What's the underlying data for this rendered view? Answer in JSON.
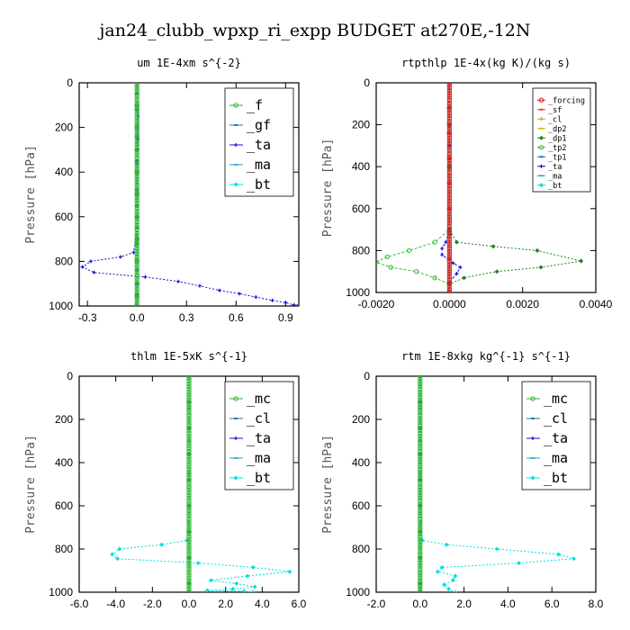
{
  "figure": {
    "title": "jan24_clubb_wpxp_ri_expp  BUDGET at270E,-12N"
  },
  "chart_data": [
    {
      "type": "line",
      "title": "um   1E-4xm s^{-2}",
      "ylabel": "Pressure [hPa]",
      "xlim": [
        -0.35,
        0.98
      ],
      "ylim": [
        1000,
        0
      ],
      "xticks": [
        -0.3,
        0.0,
        0.3,
        0.6,
        0.9
      ],
      "xtick_labels": [
        "-0.3",
        "0.0",
        "0.3",
        "0.6",
        "0.9"
      ],
      "yticks": [
        0,
        200,
        400,
        600,
        800,
        1000
      ],
      "ytick_labels": [
        "0",
        "200",
        "400",
        "600",
        "800",
        "1000"
      ],
      "legend": "top-right",
      "legend_size": "large",
      "series": [
        {
          "name": "_f",
          "color": "#2db82d",
          "x": [
            0,
            0,
            0,
            0,
            0,
            0,
            0,
            0,
            0,
            0,
            0,
            0
          ],
          "y": [
            0,
            100,
            200,
            300,
            400,
            500,
            600,
            700,
            800,
            900,
            950,
            1000
          ]
        },
        {
          "name": "_gf",
          "color": "#1f77b4",
          "x": [
            0,
            0,
            0,
            0,
            0,
            0,
            0,
            0,
            0,
            0,
            0,
            0
          ],
          "y": [
            0,
            100,
            200,
            300,
            400,
            500,
            600,
            700,
            800,
            900,
            950,
            1000
          ]
        },
        {
          "name": "_ta",
          "color": "#1010d0",
          "x": [
            0,
            0,
            0.005,
            0.005,
            0,
            0,
            0,
            0,
            -0.02,
            -0.1,
            -0.28,
            -0.33,
            -0.26,
            0.05,
            0.25,
            0.38,
            0.5,
            0.62,
            0.72,
            0.82,
            0.9,
            0.95,
            0.97
          ],
          "y": [
            0,
            50,
            150,
            250,
            350,
            450,
            550,
            650,
            760,
            780,
            800,
            825,
            850,
            870,
            890,
            910,
            930,
            945,
            960,
            975,
            985,
            995,
            1000
          ]
        },
        {
          "name": "_ma",
          "color": "#20a0d0",
          "x": [
            0,
            0,
            0,
            0,
            0,
            0,
            0,
            0,
            0,
            0
          ],
          "y": [
            0,
            120,
            240,
            360,
            480,
            600,
            720,
            840,
            960,
            1000
          ]
        },
        {
          "name": "_bt",
          "color": "#00e0e0",
          "x": [
            0,
            0,
            0,
            0,
            0,
            0,
            0,
            0,
            0,
            0
          ],
          "y": [
            0,
            120,
            240,
            360,
            480,
            600,
            720,
            840,
            960,
            1000
          ]
        }
      ]
    },
    {
      "type": "line",
      "title": "rtpthlp   1E-4x(kg K)/(kg s)",
      "ylabel": "Pressure [hPa]",
      "xlim": [
        -0.002,
        0.004
      ],
      "ylim": [
        1000,
        0
      ],
      "xticks": [
        -0.002,
        0.0,
        0.002,
        0.004
      ],
      "xtick_labels": [
        "-0.0020",
        "0.0000",
        "0.0020",
        "0.0040"
      ],
      "yticks": [
        0,
        200,
        400,
        600,
        800,
        1000
      ],
      "ytick_labels": [
        "0",
        "200",
        "400",
        "600",
        "800",
        "1000"
      ],
      "legend": "top-right",
      "legend_size": "small",
      "series": [
        {
          "name": "_forcing",
          "color": "#d02020",
          "x": [
            0,
            0,
            0,
            0,
            0,
            0,
            0,
            0,
            0,
            0
          ],
          "y": [
            0,
            120,
            240,
            360,
            480,
            600,
            720,
            840,
            960,
            1000
          ]
        },
        {
          "name": "_sf",
          "color": "#e04010",
          "x": [
            0,
            0,
            0,
            0,
            0,
            0,
            0,
            0,
            0,
            0
          ],
          "y": [
            0,
            120,
            240,
            360,
            480,
            600,
            720,
            840,
            960,
            1000
          ]
        },
        {
          "name": "_cl",
          "color": "#e0a000",
          "x": [
            0,
            0,
            0,
            0,
            0,
            0,
            0,
            0,
            0,
            0
          ],
          "y": [
            0,
            120,
            240,
            360,
            480,
            600,
            720,
            840,
            960,
            1000
          ]
        },
        {
          "name": "_dp2",
          "color": "#c0c000",
          "x": [
            0,
            0,
            0,
            0,
            0,
            0,
            0,
            0,
            0,
            0
          ],
          "y": [
            0,
            120,
            240,
            360,
            480,
            600,
            720,
            840,
            960,
            1000
          ]
        },
        {
          "name": "_dp1",
          "color": "#208020",
          "x": [
            0,
            0,
            0,
            0,
            0.0002,
            0.0012,
            0.0024,
            0.0036,
            0.0025,
            0.0013,
            0.0004,
            0,
            0
          ],
          "y": [
            0,
            200,
            400,
            700,
            760,
            780,
            800,
            850,
            880,
            900,
            930,
            960,
            1000
          ]
        },
        {
          "name": "_tp2",
          "color": "#30c030",
          "x": [
            0,
            0,
            0,
            0,
            -0.0004,
            -0.0011,
            -0.0017,
            -0.002,
            -0.0016,
            -0.0009,
            -0.0004,
            0,
            0
          ],
          "y": [
            0,
            200,
            400,
            700,
            760,
            800,
            830,
            855,
            880,
            900,
            930,
            960,
            1000
          ]
        },
        {
          "name": "_tp1",
          "color": "#1f77b4",
          "x": [
            0,
            0,
            0,
            0,
            0,
            0,
            0,
            0,
            0,
            0
          ],
          "y": [
            0,
            120,
            240,
            360,
            480,
            600,
            720,
            840,
            960,
            1000
          ]
        },
        {
          "name": "_ta",
          "color": "#1010d0",
          "x": [
            0,
            0,
            0,
            -0.0001,
            -0.0002,
            -0.0002,
            0.0001,
            0.0003,
            0.0002,
            0,
            0
          ],
          "y": [
            0,
            300,
            700,
            760,
            790,
            820,
            860,
            880,
            910,
            950,
            1000
          ]
        },
        {
          "name": "_ma",
          "color": "#20a0d0",
          "x": [
            0,
            0,
            0,
            0,
            0,
            0,
            0,
            0,
            0,
            0
          ],
          "y": [
            0,
            120,
            240,
            360,
            480,
            600,
            720,
            840,
            960,
            1000
          ]
        },
        {
          "name": "_bt",
          "color": "#00e0e0",
          "x": [
            0,
            0,
            0,
            0,
            0,
            0,
            0,
            0,
            0,
            0
          ],
          "y": [
            0,
            120,
            240,
            360,
            480,
            600,
            720,
            840,
            960,
            1000
          ]
        }
      ]
    },
    {
      "type": "line",
      "title": "thlm   1E-5xK s^{-1}",
      "ylabel": "Pressure [hPa]",
      "xlim": [
        -6,
        6
      ],
      "ylim": [
        1000,
        0
      ],
      "xticks": [
        -6,
        -4,
        -2,
        0,
        2,
        4,
        6
      ],
      "xtick_labels": [
        "-6.0",
        "-4.0",
        "-2.0",
        "0.0",
        "2.0",
        "4.0",
        "6.0"
      ],
      "yticks": [
        0,
        200,
        400,
        600,
        800,
        1000
      ],
      "ytick_labels": [
        "0",
        "200",
        "400",
        "600",
        "800",
        "1000"
      ],
      "legend": "top-right",
      "legend_size": "large",
      "series": [
        {
          "name": "_mc",
          "color": "#2db82d",
          "x": [
            0,
            0,
            0,
            0,
            0,
            0,
            0,
            0,
            0,
            0
          ],
          "y": [
            0,
            120,
            240,
            360,
            480,
            600,
            720,
            840,
            960,
            1000
          ]
        },
        {
          "name": "_cl",
          "color": "#1f77b4",
          "x": [
            0,
            0,
            0,
            0,
            0,
            0,
            0,
            0,
            0,
            0
          ],
          "y": [
            0,
            120,
            240,
            360,
            480,
            600,
            720,
            840,
            960,
            1000
          ]
        },
        {
          "name": "_ta",
          "color": "#1010d0",
          "x": [
            0,
            0,
            0,
            0,
            0,
            0,
            0,
            0,
            0,
            0
          ],
          "y": [
            0,
            120,
            240,
            360,
            480,
            600,
            720,
            840,
            960,
            1000
          ]
        },
        {
          "name": "_ma",
          "color": "#20a0d0",
          "x": [
            0,
            0,
            0,
            0,
            0,
            0,
            0,
            0,
            0,
            0
          ],
          "y": [
            0,
            120,
            240,
            360,
            480,
            600,
            720,
            840,
            960,
            1000
          ]
        },
        {
          "name": "_bt",
          "color": "#00e0e0",
          "x": [
            0,
            0,
            0,
            0,
            0,
            -0.1,
            -1.5,
            -3.8,
            -4.2,
            -3.9,
            0.5,
            3.5,
            5.5,
            3.2,
            1.2,
            2.6,
            3.6,
            2.4,
            1.0,
            3.0,
            3.5
          ],
          "y": [
            0,
            150,
            300,
            450,
            600,
            760,
            780,
            800,
            825,
            845,
            865,
            885,
            905,
            925,
            945,
            960,
            975,
            985,
            992,
            996,
            1000
          ]
        }
      ]
    },
    {
      "type": "line",
      "title": "rtm   1E-8xkg kg^{-1} s^{-1}",
      "ylabel": "Pressure [hPa]",
      "xlim": [
        -2,
        8
      ],
      "ylim": [
        1000,
        0
      ],
      "xticks": [
        -2,
        0,
        2,
        4,
        6,
        8
      ],
      "xtick_labels": [
        "-2.0",
        "0.0",
        "2.0",
        "4.0",
        "6.0",
        "8.0"
      ],
      "yticks": [
        0,
        200,
        400,
        600,
        800,
        1000
      ],
      "ytick_labels": [
        "0",
        "200",
        "400",
        "600",
        "800",
        "1000"
      ],
      "legend": "top-right",
      "legend_size": "large",
      "series": [
        {
          "name": "_mc",
          "color": "#2db82d",
          "x": [
            0,
            0,
            0,
            0,
            0,
            0,
            0,
            0,
            0,
            0
          ],
          "y": [
            0,
            120,
            240,
            360,
            480,
            600,
            720,
            840,
            960,
            1000
          ]
        },
        {
          "name": "_cl",
          "color": "#1f77b4",
          "x": [
            0,
            0,
            0,
            0,
            0,
            0,
            0,
            0,
            0,
            0
          ],
          "y": [
            0,
            120,
            240,
            360,
            480,
            600,
            720,
            840,
            960,
            1000
          ]
        },
        {
          "name": "_ta",
          "color": "#1010d0",
          "x": [
            0,
            0,
            0,
            0,
            0,
            0,
            0,
            0,
            0,
            0
          ],
          "y": [
            0,
            120,
            240,
            360,
            480,
            600,
            720,
            840,
            960,
            1000
          ]
        },
        {
          "name": "_ma",
          "color": "#20a0d0",
          "x": [
            0,
            0,
            0,
            0,
            0,
            0,
            0,
            0,
            0,
            0
          ],
          "y": [
            0,
            120,
            240,
            360,
            480,
            600,
            720,
            840,
            960,
            1000
          ]
        },
        {
          "name": "_bt",
          "color": "#00e0e0",
          "x": [
            0,
            0,
            0,
            0,
            0,
            0.1,
            1.2,
            3.5,
            6.3,
            7.0,
            4.5,
            1.0,
            0.8,
            1.6,
            1.5,
            1.1,
            1.3,
            1.6
          ],
          "y": [
            0,
            150,
            300,
            450,
            600,
            760,
            780,
            800,
            825,
            845,
            865,
            885,
            905,
            925,
            945,
            965,
            985,
            1000
          ]
        }
      ]
    }
  ]
}
